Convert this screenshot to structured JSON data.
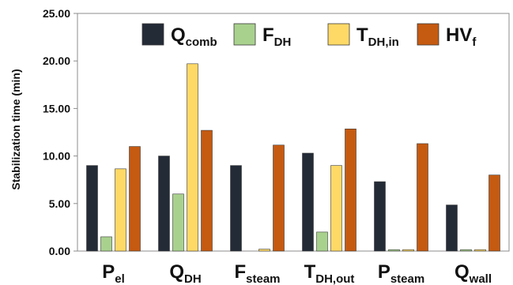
{
  "chart_data": {
    "type": "bar",
    "ylabel": "Stabilization time (min)",
    "ylim": [
      0,
      25
    ],
    "yticks": [
      "0.00",
      "5.00",
      "10.00",
      "15.00",
      "20.00",
      "25.00"
    ],
    "categories": [
      {
        "main": "P",
        "sub": "el"
      },
      {
        "main": "Q",
        "sub": "DH"
      },
      {
        "main": "F",
        "sub": "steam"
      },
      {
        "main": "T",
        "sub": "DH,out"
      },
      {
        "main": "P",
        "sub": "steam"
      },
      {
        "main": "Q",
        "sub": "wall"
      }
    ],
    "series": [
      {
        "name_main": "Q",
        "name_sub": "comb",
        "color": "#232b37",
        "values": [
          9.0,
          10.0,
          9.0,
          10.3,
          7.3,
          4.85
        ]
      },
      {
        "name_main": "F",
        "name_sub": "DH",
        "color": "#a9d18e",
        "values": [
          1.5,
          6.0,
          0.0,
          2.0,
          0.15,
          0.15
        ]
      },
      {
        "name_main": "T",
        "name_sub": "DH,in",
        "color": "#ffd966",
        "values": [
          8.65,
          19.7,
          0.2,
          9.0,
          0.15,
          0.15
        ]
      },
      {
        "name_main": "HV",
        "name_sub": "f",
        "color": "#c55a11",
        "values": [
          11.0,
          12.7,
          11.15,
          12.85,
          11.3,
          8.0
        ]
      }
    ],
    "grid": false,
    "legend_position": "top"
  }
}
